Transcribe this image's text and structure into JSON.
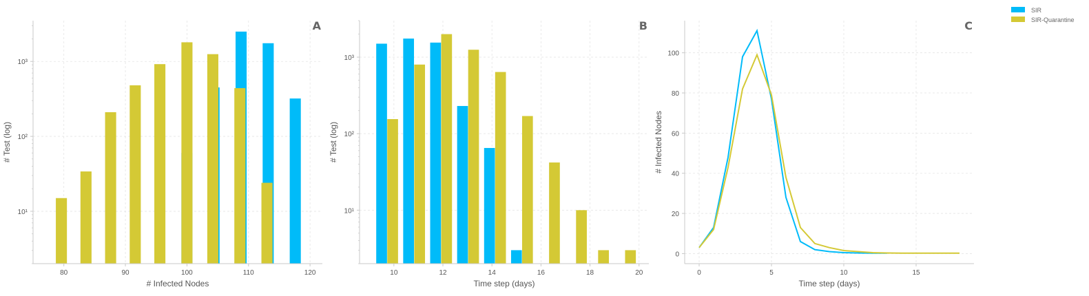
{
  "colors": {
    "sir": "#00bbf9",
    "sir_quarantine": "#d4c935",
    "axis": "#c8c8c8",
    "grid": "#e4e4e4"
  },
  "legend": {
    "items": [
      {
        "label": "SIR",
        "color": "#00bbf9"
      },
      {
        "label": "SIR-Quarantine",
        "color": "#d4c935"
      }
    ],
    "placement": "top-right"
  },
  "chart_data": [
    {
      "panel": "A",
      "type": "bar",
      "xlabel": "# Infected Nodes",
      "ylabel": "# Test (log)",
      "xlim": [
        75,
        122
      ],
      "ylim": [
        2,
        3500
      ],
      "yscale": "log",
      "xticks": [
        80,
        90,
        100,
        110,
        120
      ],
      "yticks": [
        {
          "v": 10,
          "label": "10¹"
        },
        {
          "v": 100,
          "label": "10²"
        },
        {
          "v": 1000,
          "label": "10³"
        }
      ],
      "grid": true,
      "bar_width": 1.8,
      "series": [
        {
          "name": "SIR",
          "bars": [
            [
              96.8,
              2
            ],
            [
              100.0,
              60
            ],
            [
              104.4,
              450
            ],
            [
              108.8,
              2500
            ],
            [
              113.2,
              1750
            ],
            [
              117.6,
              320
            ]
          ]
        },
        {
          "name": "SIR-Quarantine",
          "bars": [
            [
              79.6,
              15
            ],
            [
              83.6,
              34
            ],
            [
              87.6,
              210
            ],
            [
              91.6,
              480
            ],
            [
              95.6,
              920
            ],
            [
              100.0,
              1800
            ],
            [
              104.2,
              1250
            ],
            [
              108.6,
              440
            ],
            [
              113.0,
              24
            ]
          ]
        }
      ]
    },
    {
      "panel": "B",
      "type": "bar",
      "xlabel": "Time step (days)",
      "ylabel": "# Test (log)",
      "xlim": [
        8.6,
        20.4
      ],
      "ylim": [
        2,
        3000
      ],
      "yscale": "log",
      "xticks": [
        10,
        12,
        14,
        16,
        18,
        20
      ],
      "yticks": [
        {
          "v": 10,
          "label": "10¹"
        },
        {
          "v": 100,
          "label": "10²"
        },
        {
          "v": 1000,
          "label": "10³"
        }
      ],
      "grid": true,
      "bar_width": 0.44,
      "series": [
        {
          "name": "SIR",
          "bars": [
            [
              9.5,
              1500
            ],
            [
              10.6,
              1750
            ],
            [
              11.7,
              1550
            ],
            [
              12.8,
              230
            ],
            [
              13.9,
              65
            ],
            [
              15.0,
              3
            ]
          ]
        },
        {
          "name": "SIR-Quarantine",
          "bars": [
            [
              9.95,
              155
            ],
            [
              11.05,
              800
            ],
            [
              12.15,
              2000
            ],
            [
              13.25,
              1250
            ],
            [
              14.35,
              640
            ],
            [
              15.45,
              170
            ],
            [
              16.55,
              42
            ],
            [
              17.65,
              10
            ],
            [
              18.55,
              3
            ],
            [
              19.65,
              3
            ]
          ]
        }
      ]
    },
    {
      "panel": "C",
      "type": "line",
      "xlabel": "Time step (days)",
      "ylabel": "# Infected Nodes",
      "xlim": [
        -1,
        19
      ],
      "ylim": [
        -5,
        116
      ],
      "xticks": [
        0,
        5,
        10,
        15
      ],
      "yticks": [
        {
          "v": 0,
          "label": "0"
        },
        {
          "v": 20,
          "label": "20"
        },
        {
          "v": 40,
          "label": "40"
        },
        {
          "v": 60,
          "label": "60"
        },
        {
          "v": 80,
          "label": "80"
        },
        {
          "v": 100,
          "label": "100"
        }
      ],
      "grid": true,
      "series": [
        {
          "name": "SIR",
          "x": [
            0,
            1,
            2,
            3,
            4,
            5,
            6,
            7,
            8,
            9,
            10,
            11,
            12,
            13
          ],
          "y": [
            3,
            13,
            48,
            98,
            111,
            77,
            28,
            6,
            2,
            1,
            0.5,
            0.3,
            0.2,
            0.2
          ]
        },
        {
          "name": "SIR-Quarantine",
          "x": [
            0,
            1,
            2,
            3,
            4,
            5,
            6,
            7,
            8,
            9,
            10,
            11,
            12,
            13,
            14,
            15,
            16,
            17,
            18
          ],
          "y": [
            3,
            12,
            43,
            82,
            99,
            79,
            38,
            13,
            5,
            3,
            1.5,
            1,
            0.5,
            0.3,
            0.2,
            0.2,
            0.2,
            0.2,
            0.2
          ]
        }
      ]
    }
  ]
}
